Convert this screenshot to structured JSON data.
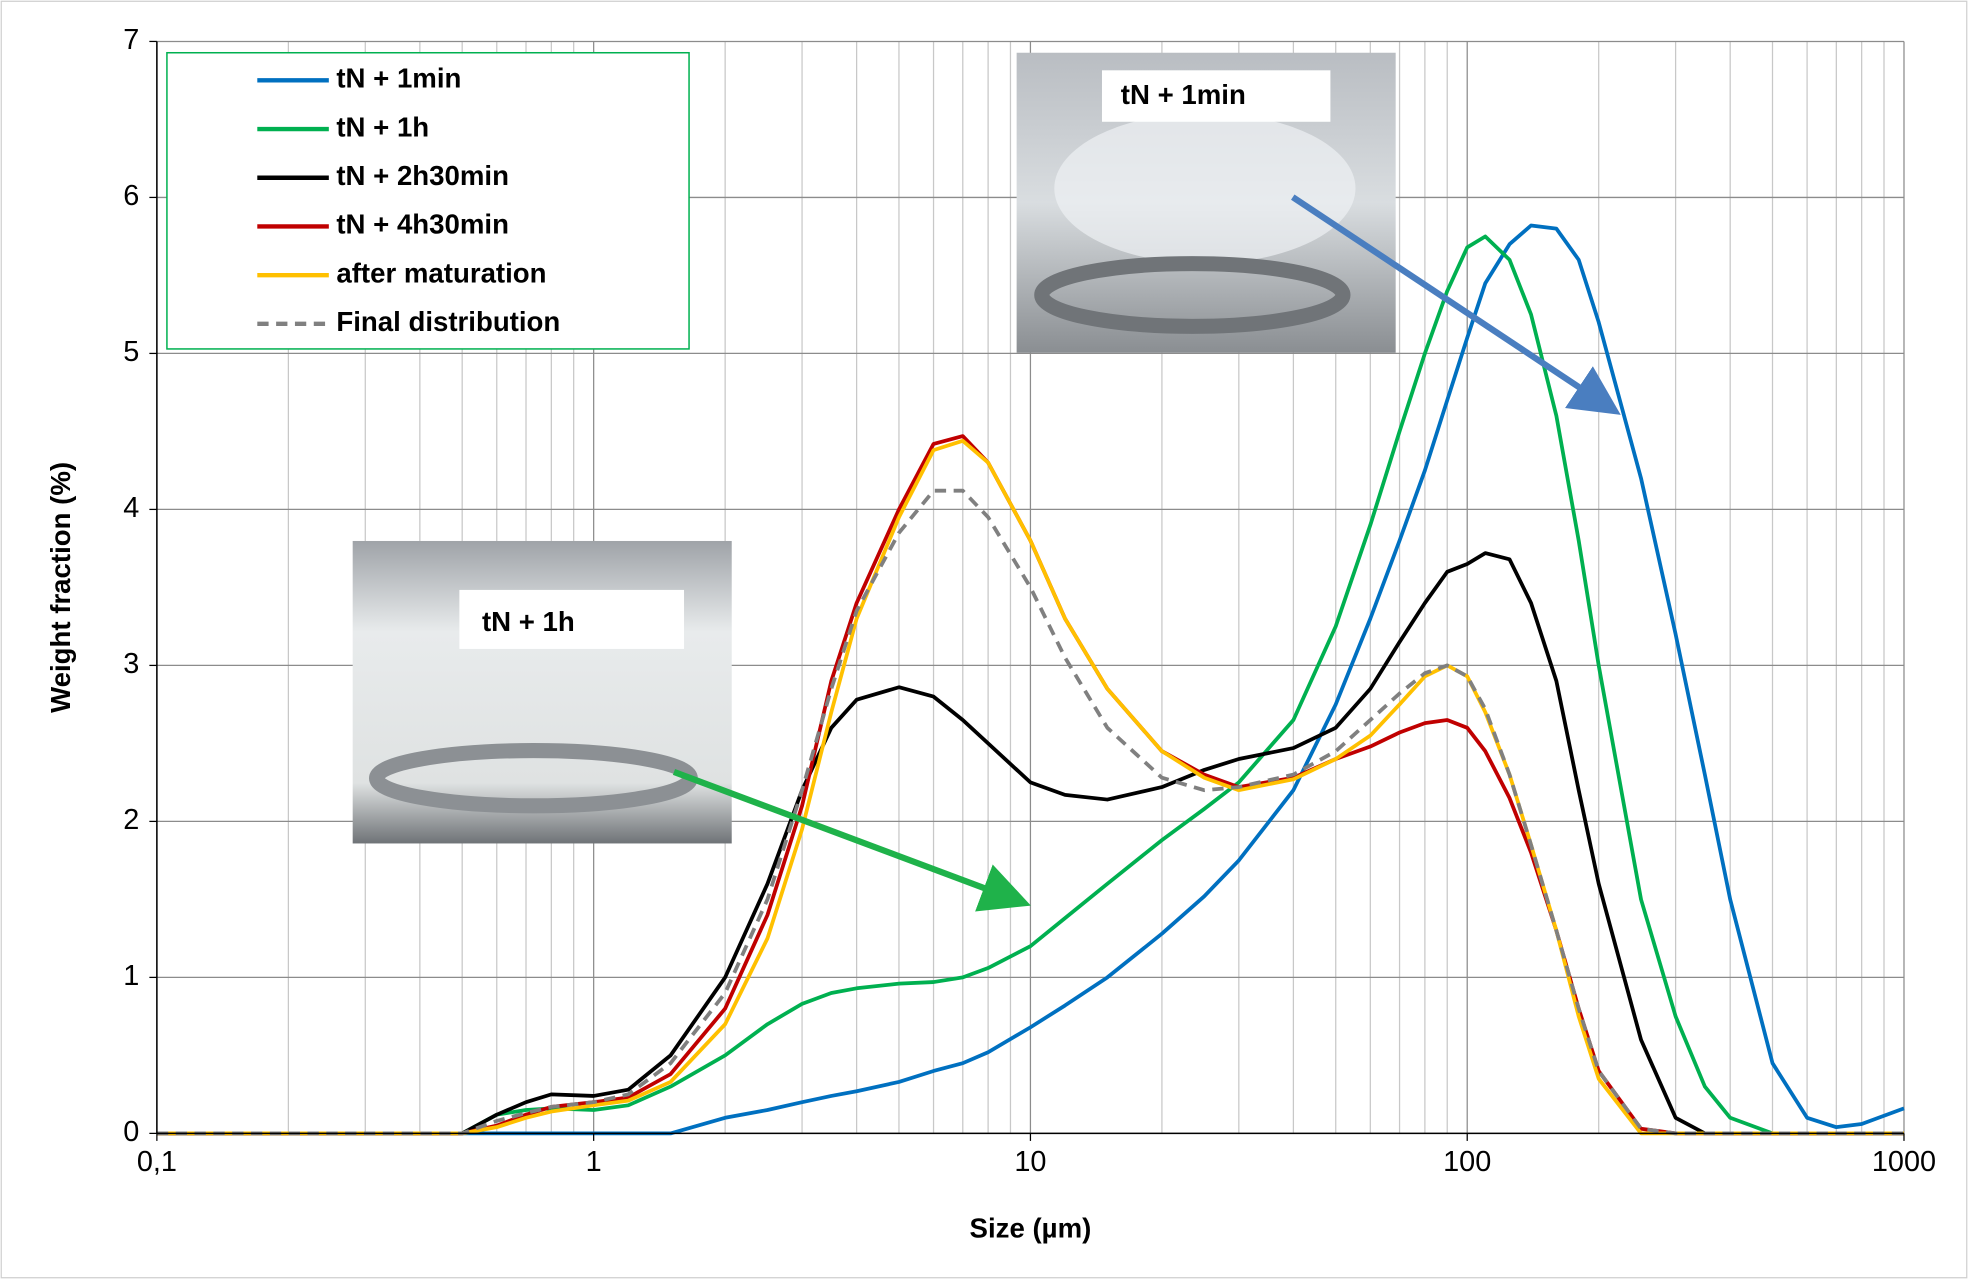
{
  "chart_data": {
    "type": "line",
    "x_label": "Size (µm)",
    "y_label": "Weight fraction (%)",
    "xscale": "log",
    "grid": true,
    "legend": "top-left",
    "xlim": [
      0.1,
      1000
    ],
    "ylim": [
      0,
      7
    ],
    "xticks": [
      {
        "value": 0.1,
        "label": "0,1"
      },
      1,
      10,
      100,
      1000
    ],
    "xminorticks": [
      0.2,
      0.3,
      0.4,
      0.5,
      0.6,
      0.7,
      0.8,
      0.9,
      2,
      3,
      4,
      5,
      6,
      7,
      8,
      9,
      20,
      30,
      40,
      50,
      60,
      70,
      80,
      90,
      200,
      300,
      400,
      500,
      600,
      700,
      800,
      900
    ],
    "yticks": [
      0,
      1,
      2,
      3,
      4,
      5,
      6,
      7
    ],
    "x": [
      0.1,
      0.2,
      0.3,
      0.4,
      0.5,
      0.6,
      0.7,
      0.8,
      1,
      1.2,
      1.5,
      2,
      2.5,
      3,
      3.5,
      4,
      5,
      6,
      7,
      8,
      10,
      12,
      15,
      20,
      25,
      30,
      40,
      50,
      60,
      70,
      80,
      90,
      100,
      110,
      125,
      140,
      160,
      180,
      200,
      250,
      300,
      350,
      400,
      500,
      600,
      700,
      800,
      1000
    ],
    "series": [
      {
        "name": "tN + 1min",
        "color": "#0070c0",
        "style": "solid",
        "values": [
          0,
          0,
          0,
          0,
          0,
          0,
          0,
          0,
          0,
          0,
          0,
          0.1,
          0.15,
          0.2,
          0.24,
          0.27,
          0.33,
          0.4,
          0.45,
          0.52,
          0.68,
          0.82,
          1.0,
          1.28,
          1.52,
          1.75,
          2.2,
          2.75,
          3.3,
          3.8,
          4.25,
          4.7,
          5.1,
          5.45,
          5.7,
          5.82,
          5.8,
          5.6,
          5.2,
          4.2,
          3.2,
          2.3,
          1.5,
          0.45,
          0.1,
          0.04,
          0.06,
          0.16
        ]
      },
      {
        "name": "tN + 1h",
        "color": "#00b050",
        "style": "solid",
        "values": [
          0,
          0,
          0,
          0,
          0,
          0.12,
          0.15,
          0.16,
          0.15,
          0.18,
          0.3,
          0.5,
          0.7,
          0.83,
          0.9,
          0.93,
          0.96,
          0.97,
          1.0,
          1.06,
          1.2,
          1.38,
          1.6,
          1.88,
          2.08,
          2.25,
          2.65,
          3.25,
          3.9,
          4.5,
          5.0,
          5.4,
          5.68,
          5.75,
          5.6,
          5.25,
          4.6,
          3.8,
          3.0,
          1.5,
          0.75,
          0.3,
          0.1,
          0,
          0,
          0,
          0,
          0
        ]
      },
      {
        "name": "tN + 2h30min",
        "color": "#000000",
        "style": "solid",
        "values": [
          0,
          0,
          0,
          0,
          0,
          0.12,
          0.2,
          0.25,
          0.24,
          0.28,
          0.5,
          1.0,
          1.6,
          2.2,
          2.6,
          2.78,
          2.86,
          2.8,
          2.65,
          2.5,
          2.25,
          2.17,
          2.14,
          2.22,
          2.33,
          2.4,
          2.47,
          2.6,
          2.85,
          3.15,
          3.4,
          3.6,
          3.65,
          3.72,
          3.68,
          3.4,
          2.9,
          2.2,
          1.6,
          0.6,
          0.1,
          0,
          0,
          0,
          0,
          0,
          0,
          0
        ]
      },
      {
        "name": "tN + 4h30min",
        "color": "#c00000",
        "style": "solid",
        "values": [
          0,
          0,
          0,
          0,
          0,
          0.05,
          0.12,
          0.17,
          0.2,
          0.23,
          0.38,
          0.8,
          1.4,
          2.1,
          2.9,
          3.4,
          4.0,
          4.42,
          4.47,
          4.3,
          3.8,
          3.3,
          2.85,
          2.45,
          2.3,
          2.22,
          2.28,
          2.4,
          2.48,
          2.57,
          2.63,
          2.65,
          2.6,
          2.45,
          2.15,
          1.8,
          1.3,
          0.8,
          0.4,
          0.03,
          0,
          0,
          0,
          0,
          0,
          0,
          0,
          0
        ]
      },
      {
        "name": "after maturation",
        "color": "#ffc000",
        "style": "solid",
        "values": [
          0,
          0,
          0,
          0,
          0,
          0.04,
          0.1,
          0.14,
          0.18,
          0.21,
          0.33,
          0.7,
          1.25,
          1.95,
          2.7,
          3.3,
          3.95,
          4.38,
          4.44,
          4.3,
          3.8,
          3.3,
          2.85,
          2.45,
          2.28,
          2.2,
          2.27,
          2.4,
          2.55,
          2.75,
          2.93,
          3.0,
          2.93,
          2.7,
          2.3,
          1.85,
          1.3,
          0.75,
          0.35,
          0,
          0,
          0,
          0,
          0,
          0,
          0,
          0,
          0
        ]
      },
      {
        "name": "Final distribution",
        "color": "#808080",
        "style": "dashed",
        "values": [
          0,
          0,
          0,
          0,
          0,
          0.08,
          0.13,
          0.17,
          0.2,
          0.25,
          0.45,
          0.9,
          1.5,
          2.2,
          2.85,
          3.35,
          3.85,
          4.12,
          4.12,
          3.95,
          3.5,
          3.05,
          2.6,
          2.28,
          2.2,
          2.22,
          2.3,
          2.45,
          2.65,
          2.82,
          2.95,
          3.0,
          2.93,
          2.72,
          2.3,
          1.85,
          1.3,
          0.8,
          0.4,
          0.03,
          0,
          0,
          0,
          0,
          0,
          0,
          0,
          0
        ]
      }
    ],
    "annotations": [
      "tN + 1min",
      "tN + 1h"
    ]
  }
}
